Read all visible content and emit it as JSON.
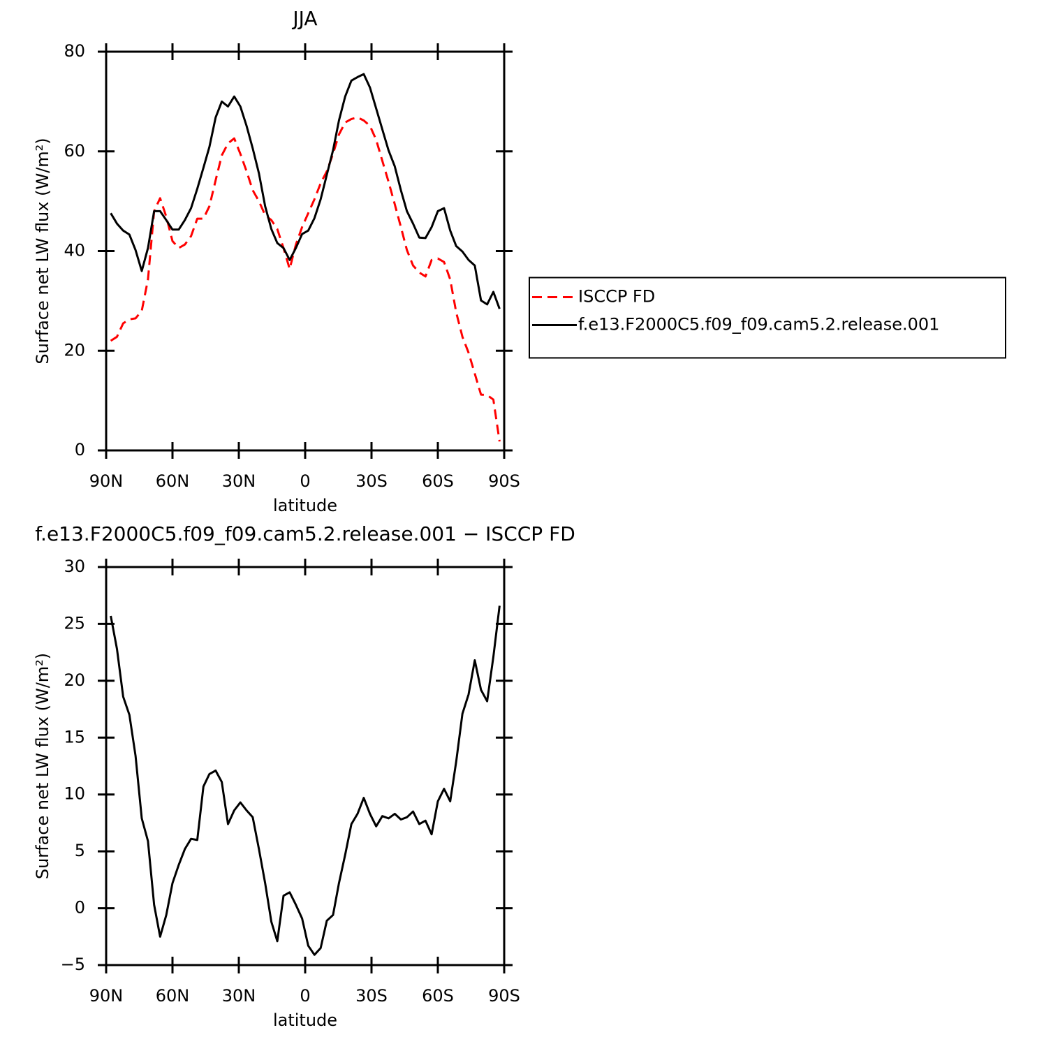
{
  "chart_data": [
    {
      "type": "line",
      "title": "JJA",
      "xlabel": "latitude",
      "ylabel": "Surface net LW flux (W/m²)",
      "x": [
        87.9,
        85.1,
        82.3,
        79.5,
        76.7,
        73.9,
        71.1,
        68.3,
        65.6,
        62.8,
        60.0,
        57.2,
        54.4,
        51.6,
        48.8,
        46.0,
        43.3,
        40.5,
        37.7,
        34.9,
        32.1,
        29.3,
        26.5,
        23.7,
        20.9,
        18.1,
        15.3,
        12.6,
        9.8,
        7.0,
        4.2,
        1.4,
        -1.4,
        -4.2,
        -7.0,
        -9.8,
        -12.6,
        -15.3,
        -18.1,
        -20.9,
        -23.7,
        -26.5,
        -29.3,
        -32.1,
        -34.9,
        -37.7,
        -40.5,
        -43.3,
        -46.0,
        -48.8,
        -51.6,
        -54.4,
        -57.2,
        -60.0,
        -62.8,
        -65.6,
        -68.3,
        -71.1,
        -73.9,
        -76.7,
        -79.5,
        -82.3,
        -85.1,
        -87.9
      ],
      "series": [
        {
          "name": "ISCCP FD",
          "color": "#ff0000",
          "line_style": "dashed",
          "values": [
            22.0,
            22.8,
            25.5,
            26.3,
            26.5,
            28.0,
            34.3,
            48.0,
            50.6,
            46.9,
            42.0,
            40.6,
            41.3,
            43.0,
            46.5,
            46.5,
            49.0,
            54.2,
            59.2,
            61.6,
            62.6,
            59.5,
            56.0,
            52.2,
            50.0,
            47.2,
            46.2,
            44.4,
            40.6,
            36.4,
            41.3,
            44.8,
            47.6,
            50.4,
            53.6,
            56.0,
            59.5,
            63.4,
            65.8,
            66.5,
            66.8,
            66.2,
            65.1,
            62.3,
            58.1,
            53.9,
            49.4,
            44.8,
            40.2,
            37.1,
            35.7,
            34.9,
            38.2,
            38.5,
            37.8,
            34.3,
            27.7,
            22.8,
            19.6,
            15.4,
            11.2,
            11.1,
            10.2,
            1.8
          ]
        },
        {
          "name": "f.e13.F2000C5.f09_f09.cam5.2.release.001",
          "color": "#000000",
          "line_style": "solid",
          "values": [
            47.6,
            45.5,
            44.1,
            43.3,
            40.2,
            36.0,
            40.6,
            48.0,
            48.0,
            46.2,
            44.3,
            44.3,
            46.2,
            48.6,
            52.5,
            56.7,
            60.9,
            66.8,
            70.0,
            69.0,
            71.0,
            69.0,
            65.1,
            60.6,
            55.6,
            49.0,
            44.4,
            41.6,
            40.6,
            38.2,
            40.6,
            43.4,
            44.1,
            46.6,
            50.4,
            55.3,
            60.2,
            66.2,
            71.0,
            74.2,
            74.9,
            75.5,
            72.8,
            68.6,
            64.4,
            60.2,
            57.0,
            52.2,
            48.0,
            45.5,
            42.7,
            42.6,
            44.8,
            48.0,
            48.6,
            44.1,
            41.0,
            39.9,
            38.2,
            37.1,
            30.1,
            29.3,
            31.8,
            28.4
          ]
        }
      ],
      "xlim": [
        90,
        -90
      ],
      "xticks": [
        {
          "value": 90,
          "label": "90N"
        },
        {
          "value": 60,
          "label": "60N"
        },
        {
          "value": 30,
          "label": "30N"
        },
        0,
        {
          "value": -30,
          "label": "30S"
        },
        {
          "value": -60,
          "label": "60S"
        },
        {
          "value": -90,
          "label": "90S"
        }
      ],
      "ylim": [
        0,
        80
      ],
      "yticks": [
        0,
        20,
        40,
        60,
        80
      ],
      "grid": false,
      "legend": "right"
    },
    {
      "type": "line",
      "title": "f.e13.F2000C5.f09_f09.cam5.2.release.001 − ISCCP FD",
      "xlabel": "latitude",
      "ylabel": "Surface net LW flux (W/m²)",
      "x": [
        87.9,
        85.1,
        82.3,
        79.5,
        76.7,
        73.9,
        71.1,
        68.3,
        65.6,
        62.8,
        60.0,
        57.2,
        54.4,
        51.6,
        48.8,
        46.0,
        43.3,
        40.5,
        37.7,
        34.9,
        32.1,
        29.3,
        26.5,
        23.7,
        20.9,
        18.1,
        15.3,
        12.6,
        9.8,
        7.0,
        4.2,
        1.4,
        -1.4,
        -4.2,
        -7.0,
        -9.8,
        -12.6,
        -15.3,
        -18.1,
        -20.9,
        -23.7,
        -26.5,
        -29.3,
        -32.1,
        -34.9,
        -37.7,
        -40.5,
        -43.3,
        -46.0,
        -48.8,
        -51.6,
        -54.4,
        -57.2,
        -60.0,
        -62.8,
        -65.6,
        -68.3,
        -71.1,
        -73.9,
        -76.7,
        -79.5,
        -82.3,
        -85.1,
        -87.9
      ],
      "values": [
        25.7,
        22.8,
        18.6,
        17.0,
        13.4,
        7.9,
        5.9,
        0.3,
        -2.5,
        -0.6,
        2.2,
        3.8,
        5.2,
        6.1,
        6.0,
        10.7,
        11.8,
        12.1,
        11.1,
        7.4,
        8.6,
        9.3,
        8.6,
        8.0,
        5.2,
        2.2,
        -1.2,
        -2.9,
        1.1,
        1.4,
        0.3,
        -0.9,
        -3.3,
        -4.1,
        -3.5,
        -1.1,
        -0.6,
        2.2,
        4.7,
        7.4,
        8.3,
        9.7,
        8.3,
        7.2,
        8.1,
        7.9,
        8.3,
        7.8,
        8.0,
        8.5,
        7.4,
        7.7,
        6.5,
        9.4,
        10.5,
        9.4,
        12.9,
        17.1,
        18.8,
        21.8,
        19.2,
        18.2,
        22.1,
        26.6
      ],
      "color": "#000000",
      "line_style": "solid",
      "xlim": [
        90,
        -90
      ],
      "xticks": [
        {
          "value": 90,
          "label": "90N"
        },
        {
          "value": 60,
          "label": "60N"
        },
        {
          "value": 30,
          "label": "30N"
        },
        0,
        {
          "value": -30,
          "label": "30S"
        },
        {
          "value": -60,
          "label": "60S"
        },
        {
          "value": -90,
          "label": "90S"
        }
      ],
      "ylim": [
        -5,
        30
      ],
      "yticks": [
        {
          "value": -5,
          "label": "−5"
        },
        0,
        5,
        10,
        15,
        20,
        25,
        30
      ],
      "grid": false
    }
  ]
}
